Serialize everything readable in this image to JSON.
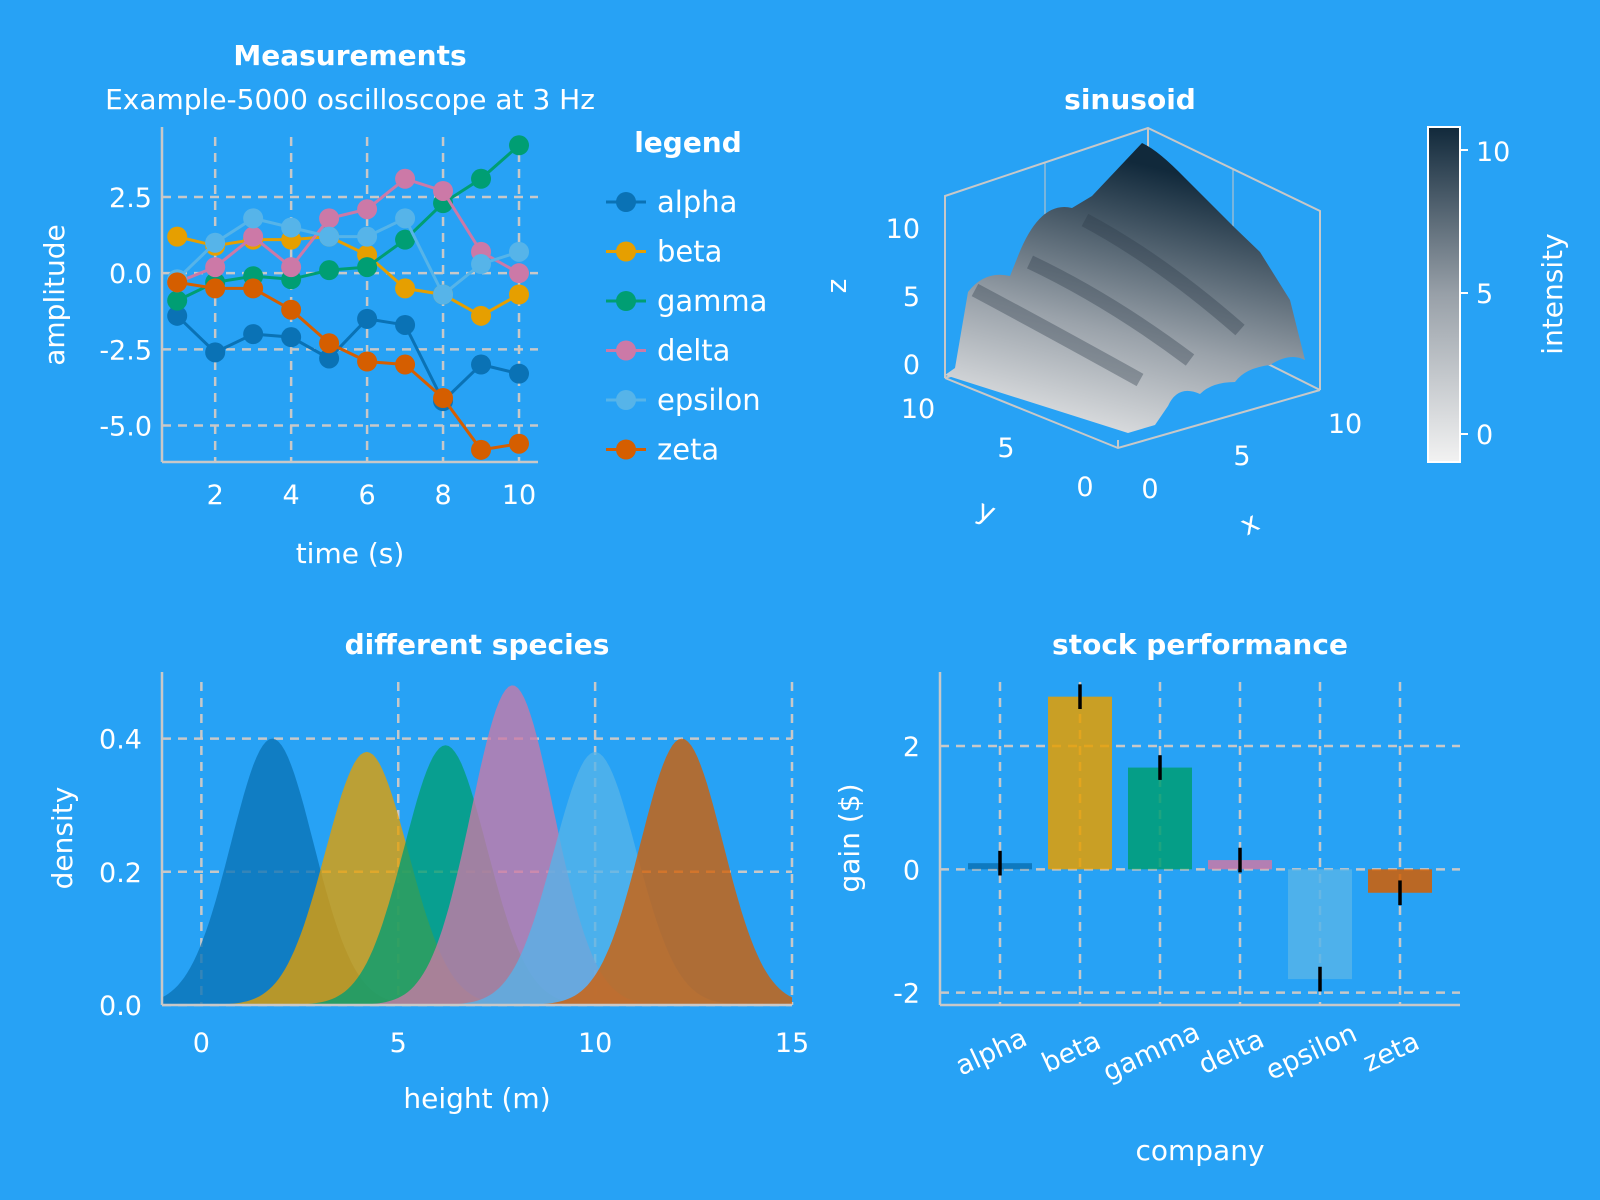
{
  "colors": {
    "background": "#27a2f5",
    "axis": "#c8c8c8",
    "grid": "#c8c8c8",
    "series": [
      "#0a72b5",
      "#e69f00",
      "#009e73",
      "#cc79a7",
      "#56b4e9",
      "#d55e00"
    ]
  },
  "chart_data": [
    {
      "type": "line",
      "title": "Measurements",
      "subtitle": "Example-5000 oscilloscope at 3 Hz",
      "xlabel": "time (s)",
      "ylabel": "amplitude",
      "xlim": [
        0.6,
        10.5
      ],
      "ylim": [
        -6.2,
        4.8
      ],
      "xticks": [
        2,
        4,
        6,
        8,
        10
      ],
      "xtick_labels": [
        "2",
        "4",
        "6",
        "8",
        "10"
      ],
      "yticks": [
        -5.0,
        -2.5,
        0.0,
        2.5
      ],
      "ytick_labels": [
        "-5.0",
        "-2.5",
        "0.0",
        "2.5"
      ],
      "grid": true,
      "legend_title": "legend",
      "legend_position": "right",
      "x": [
        1,
        2,
        3,
        4,
        5,
        6,
        7,
        8,
        9,
        10
      ],
      "series": [
        {
          "name": "alpha",
          "values": [
            -1.4,
            -2.6,
            -2.0,
            -2.1,
            -2.8,
            -1.5,
            -1.7,
            -4.2,
            -3.0,
            -3.3
          ]
        },
        {
          "name": "beta",
          "values": [
            1.2,
            0.9,
            1.1,
            1.1,
            1.2,
            0.6,
            -0.5,
            -0.7,
            -1.4,
            -0.7
          ]
        },
        {
          "name": "gamma",
          "values": [
            -0.9,
            -0.3,
            -0.1,
            -0.2,
            0.1,
            0.2,
            1.1,
            2.3,
            3.1,
            4.2
          ]
        },
        {
          "name": "delta",
          "values": [
            -0.3,
            0.2,
            1.2,
            0.2,
            1.8,
            2.1,
            3.1,
            2.7,
            0.7,
            0.0
          ]
        },
        {
          "name": "epsilon",
          "values": [
            -0.2,
            1.0,
            1.8,
            1.5,
            1.2,
            1.2,
            1.8,
            -0.7,
            0.3,
            0.7
          ]
        },
        {
          "name": "zeta",
          "values": [
            -0.3,
            -0.5,
            -0.5,
            -1.2,
            -2.3,
            -2.9,
            -3.0,
            -4.1,
            -5.8,
            -5.6
          ]
        }
      ]
    },
    {
      "type": "surface",
      "title": "sinusoid",
      "xlabel": "x",
      "ylabel": "y",
      "zlabel": "z",
      "x_ticks": [
        "0",
        "5",
        "10"
      ],
      "y_ticks": [
        "0",
        "5",
        "10"
      ],
      "z_ticks": [
        "0",
        "5",
        "10"
      ],
      "colorbar_label": "intensity",
      "colorbar_ticks": [
        "0",
        "5",
        "10"
      ],
      "colorbar_range": [
        -0.8,
        10.8
      ],
      "colormap": [
        "#f2f2f2",
        "#98a0a8",
        "#11293b"
      ]
    },
    {
      "type": "area",
      "title": "different species",
      "xlabel": "height (m)",
      "ylabel": "density",
      "xlim": [
        -1,
        15
      ],
      "ylim": [
        0,
        0.5
      ],
      "xticks": [
        0,
        5,
        10,
        15
      ],
      "xtick_labels": [
        "0",
        "5",
        "10",
        "15"
      ],
      "yticks": [
        0.0,
        0.2,
        0.4
      ],
      "ytick_labels": [
        "0.0",
        "0.2",
        "0.4"
      ],
      "grid": true,
      "series": [
        {
          "center": 1.8,
          "peak": 0.4
        },
        {
          "center": 4.2,
          "peak": 0.38
        },
        {
          "center": 6.2,
          "peak": 0.39
        },
        {
          "center": 7.9,
          "peak": 0.48
        },
        {
          "center": 10.0,
          "peak": 0.38
        },
        {
          "center": 12.2,
          "peak": 0.4
        }
      ]
    },
    {
      "type": "bar",
      "title": "stock performance",
      "xlabel": "company",
      "ylabel": "gain ($)",
      "ylim": [
        -2.2,
        3.2
      ],
      "yticks": [
        -2,
        0,
        2
      ],
      "ytick_labels": [
        "-2",
        "0",
        "2"
      ],
      "grid": true,
      "categories": [
        "alpha",
        "beta",
        "gamma",
        "delta",
        "epsilon",
        "zeta"
      ],
      "values": [
        0.1,
        2.8,
        1.65,
        0.15,
        -1.78,
        -0.38
      ],
      "error_low": [
        -0.1,
        2.6,
        1.45,
        -0.05,
        -1.98,
        -0.58
      ],
      "error_high": [
        0.3,
        3.0,
        1.85,
        0.35,
        -1.58,
        -0.18
      ]
    }
  ]
}
